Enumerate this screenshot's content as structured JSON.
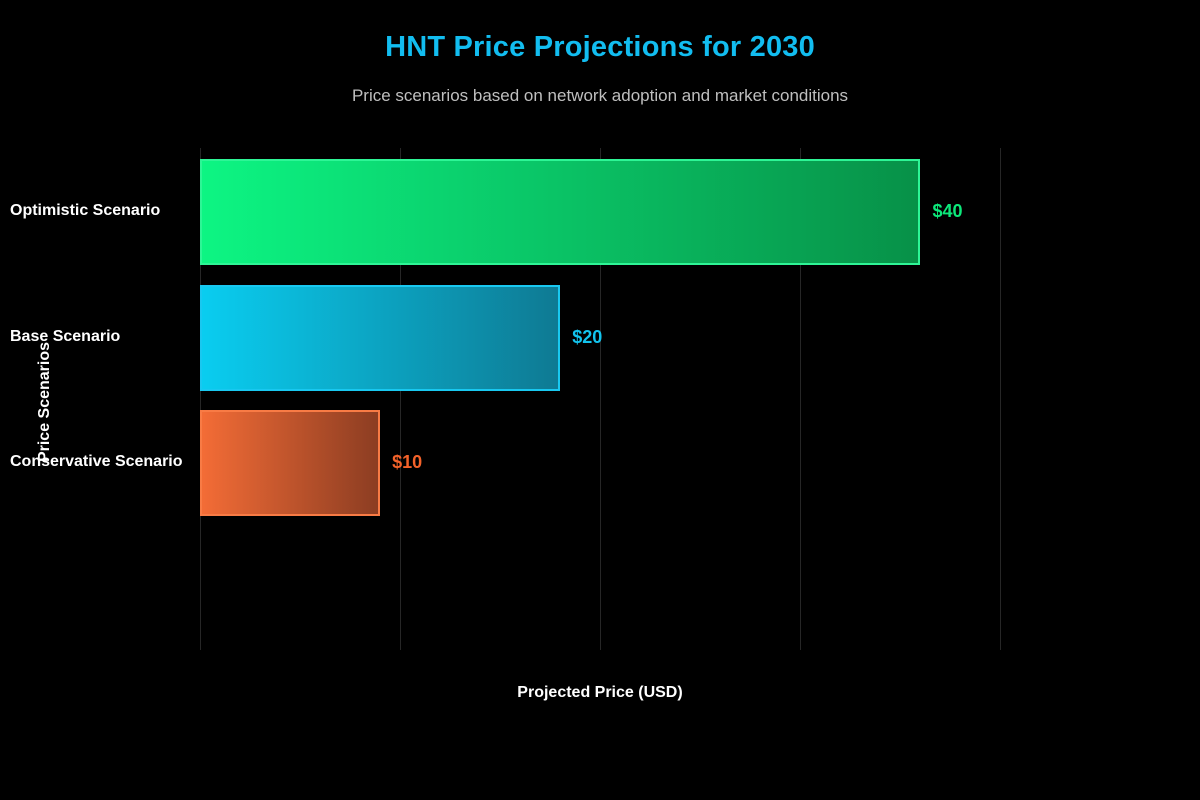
{
  "header": {
    "title": "HNT Price Projections for 2030",
    "subtitle": "Price scenarios based on network adoption and market conditions"
  },
  "chart_data": {
    "type": "bar",
    "orientation": "horizontal",
    "title": "HNT Price Projections for 2030",
    "subtitle": "Price scenarios based on network adoption and market conditions",
    "xlabel": "Projected Price (USD)",
    "ylabel": "Price Scenarios",
    "categories": [
      "Optimistic Scenario",
      "Base Scenario",
      "Conservative Scenario"
    ],
    "values": [
      40,
      20,
      10
    ],
    "value_labels": [
      "$40",
      "$20",
      "$10"
    ],
    "xlim": [
      0,
      53.3
    ],
    "grid": true,
    "gridline_values": [
      0,
      11.1,
      22.2,
      33.3,
      44.4
    ],
    "x_tick_labels_visible": false,
    "legend": false,
    "colors": {
      "background": "#000000",
      "title": "#12bdf0",
      "subtitle": "#bfbfbf",
      "axis_label": "#ffffff",
      "category_label": "#ffffff",
      "gridline": "#262626",
      "bars": [
        {
          "gradient_start": "#0df583",
          "gradient_end": "#079148",
          "border": "#2ef596",
          "value_label": "#0ce87a"
        },
        {
          "gradient_start": "#0acdf0",
          "gradient_end": "#0e7a93",
          "border": "#19c8f0",
          "value_label": "#12c4ee"
        },
        {
          "gradient_start": "#f36c36",
          "gradient_end": "#8c3d22",
          "border": "#f87b45",
          "value_label": "#f4622a"
        }
      ]
    }
  }
}
